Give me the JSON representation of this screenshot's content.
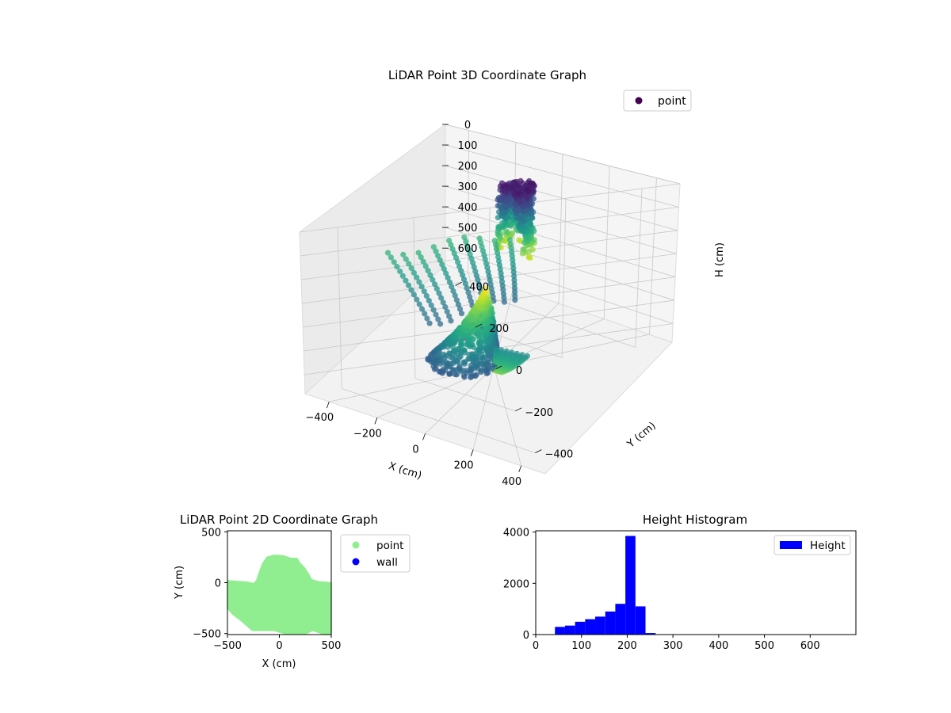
{
  "chart_data": [
    {
      "type": "scatter",
      "projection": "3d",
      "title": "LiDAR Point 3D Coordinate Graph",
      "xlabel": "X (cm)",
      "ylabel": "Y (cm)",
      "zlabel": "H (cm)",
      "xticks": [
        -400,
        -200,
        0,
        200,
        400
      ],
      "yticks": [
        -400,
        -200,
        0,
        200,
        400
      ],
      "zticks": [
        0,
        100,
        200,
        300,
        400,
        500,
        600
      ],
      "xlim": [
        -500,
        500
      ],
      "ylim": [
        -500,
        500
      ],
      "zlim": [
        0,
        680
      ],
      "z_inverted": true,
      "colormap": "viridis",
      "legend": {
        "entries": [
          "point"
        ],
        "position": "top-right",
        "color": "#440154"
      },
      "grid": true,
      "point_groups": [
        {
          "region": "rear-dome",
          "x_range": [
            -150,
            250
          ],
          "y_range": [
            100,
            300
          ],
          "h_range": [
            0,
            330
          ]
        },
        {
          "region": "left-ridges",
          "x_range": [
            -480,
            -250
          ],
          "y_range": [
            -300,
            100
          ],
          "h_range": [
            120,
            420
          ]
        },
        {
          "region": "right-ridges",
          "x_range": [
            250,
            480
          ],
          "y_range": [
            -400,
            100
          ],
          "h_range": [
            350,
            650
          ]
        },
        {
          "region": "floor-fan",
          "x_range": [
            -300,
            350
          ],
          "y_range": [
            -350,
            250
          ],
          "h_range": [
            200,
            560
          ]
        }
      ]
    },
    {
      "type": "scatter",
      "title": "LiDAR Point 2D Coordinate Graph",
      "xlabel": "X (cm)",
      "ylabel": "Y (cm)",
      "xlim": [
        -500,
        500
      ],
      "ylim": [
        -510,
        510
      ],
      "xticks": [
        -500,
        0,
        500
      ],
      "yticks": [
        500,
        0,
        -500
      ],
      "legend": {
        "position": "outside-right"
      },
      "series": [
        {
          "name": "point",
          "color": "#90ee90"
        },
        {
          "name": "wall",
          "color": "#0000ff"
        }
      ],
      "point_outline": [
        [
          -500,
          20
        ],
        [
          -300,
          5
        ],
        [
          -250,
          -10
        ],
        [
          -220,
          20
        ],
        [
          -190,
          110
        ],
        [
          -160,
          190
        ],
        [
          -120,
          250
        ],
        [
          -50,
          270
        ],
        [
          40,
          265
        ],
        [
          110,
          240
        ],
        [
          170,
          240
        ],
        [
          200,
          190
        ],
        [
          240,
          150
        ],
        [
          285,
          80
        ],
        [
          310,
          30
        ],
        [
          380,
          10
        ],
        [
          500,
          0
        ],
        [
          500,
          -500
        ],
        [
          410,
          -500
        ],
        [
          320,
          -470
        ],
        [
          250,
          -505
        ],
        [
          150,
          -505
        ],
        [
          50,
          -500
        ],
        [
          -50,
          -470
        ],
        [
          -150,
          -470
        ],
        [
          -260,
          -470
        ],
        [
          -360,
          -380
        ],
        [
          -450,
          -310
        ],
        [
          -500,
          -250
        ]
      ]
    },
    {
      "type": "bar",
      "subtype": "histogram",
      "title": "Height Histogram",
      "xlim": [
        0,
        700
      ],
      "ylim": [
        0,
        4050
      ],
      "xticks": [
        0,
        100,
        200,
        300,
        400,
        500,
        600
      ],
      "yticks": [
        0,
        2000,
        4000
      ],
      "legend": {
        "entries": [
          "Height"
        ],
        "position": "top-right"
      },
      "series": [
        {
          "name": "Height",
          "color": "#0000ff",
          "bin_width": 22,
          "bin_starts": [
            42,
            64,
            86,
            108,
            130,
            152,
            174,
            196,
            218,
            240,
            262,
            284,
            306,
            328,
            350,
            372,
            394,
            416,
            438,
            460,
            482,
            504,
            526,
            548,
            570,
            592,
            614,
            636,
            658,
            680
          ],
          "values": [
            300,
            350,
            500,
            600,
            700,
            900,
            1200,
            3850,
            1100,
            60,
            12,
            5,
            4,
            3,
            3,
            2,
            2,
            2,
            2,
            2,
            1,
            1,
            1,
            1,
            1,
            1,
            1,
            1,
            1,
            1
          ]
        }
      ]
    }
  ]
}
